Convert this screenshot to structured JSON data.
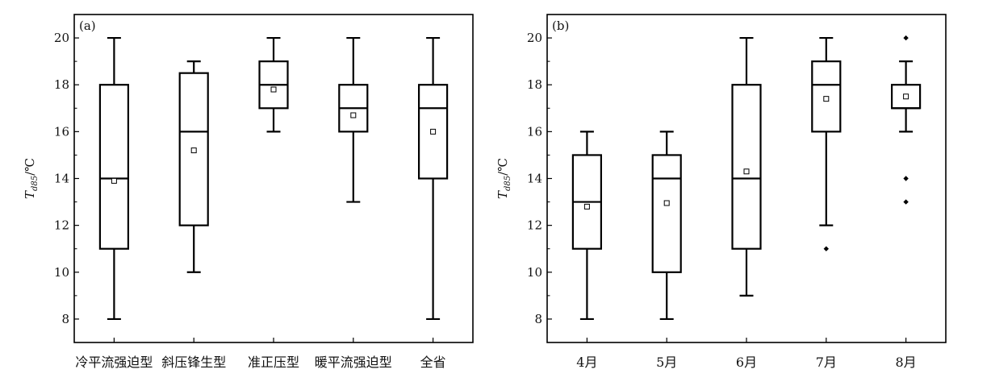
{
  "chart_data": [
    {
      "type": "box",
      "panel_label": "(a)",
      "ylabel": {
        "main": "T",
        "subscript": "d85",
        "unit": "/℃"
      },
      "ylim": [
        7,
        21
      ],
      "yticks": [
        8,
        10,
        12,
        14,
        16,
        18,
        20
      ],
      "ytick_labels": [
        "8",
        "10",
        "12",
        "14",
        "16",
        "18",
        "20"
      ],
      "categories": [
        "冷平流强迫型",
        "斜压锋生型",
        "准正压型",
        "暖平流强迫型",
        "全省"
      ],
      "boxes": [
        {
          "whisker_low": 8,
          "q1": 11,
          "median": 14,
          "q3": 18,
          "whisker_high": 20,
          "mean": 13.9,
          "outliers": []
        },
        {
          "whisker_low": 10,
          "q1": 12,
          "median": 16,
          "q3": 18.5,
          "whisker_high": 19,
          "mean": 15.2,
          "outliers": []
        },
        {
          "whisker_low": 16,
          "q1": 17,
          "median": 18,
          "q3": 19,
          "whisker_high": 20,
          "mean": 17.8,
          "outliers": []
        },
        {
          "whisker_low": 13,
          "q1": 16,
          "median": 17,
          "q3": 18,
          "whisker_high": 20,
          "mean": 16.7,
          "outliers": []
        },
        {
          "whisker_low": 8,
          "q1": 14,
          "median": 17,
          "q3": 18,
          "whisker_high": 20,
          "mean": 16.0,
          "outliers": []
        }
      ],
      "grid": false
    },
    {
      "type": "box",
      "panel_label": "(b)",
      "ylabel": {
        "main": "T",
        "subscript": "d85",
        "unit": "/℃"
      },
      "ylim": [
        7,
        21
      ],
      "yticks": [
        8,
        10,
        12,
        14,
        16,
        18,
        20
      ],
      "ytick_labels": [
        "8",
        "10",
        "12",
        "14",
        "16",
        "18",
        "20"
      ],
      "categories": [
        "4月",
        "5月",
        "6月",
        "7月",
        "8月"
      ],
      "boxes": [
        {
          "whisker_low": 8,
          "q1": 11,
          "median": 13,
          "q3": 15,
          "whisker_high": 16,
          "mean": 12.8,
          "outliers": []
        },
        {
          "whisker_low": 8,
          "q1": 10,
          "median": 14,
          "q3": 15,
          "whisker_high": 16,
          "mean": 12.95,
          "outliers": []
        },
        {
          "whisker_low": 9,
          "q1": 11,
          "median": 14,
          "q3": 18,
          "whisker_high": 20,
          "mean": 14.3,
          "outliers": []
        },
        {
          "whisker_low": 12,
          "q1": 16,
          "median": 18,
          "q3": 19,
          "whisker_high": 20,
          "mean": 17.4,
          "outliers": [
            11
          ]
        },
        {
          "whisker_low": 16,
          "q1": 17,
          "median": 17,
          "q3": 18,
          "whisker_high": 19,
          "mean": 17.5,
          "outliers": [
            13,
            14,
            20
          ]
        }
      ],
      "grid": false
    }
  ]
}
